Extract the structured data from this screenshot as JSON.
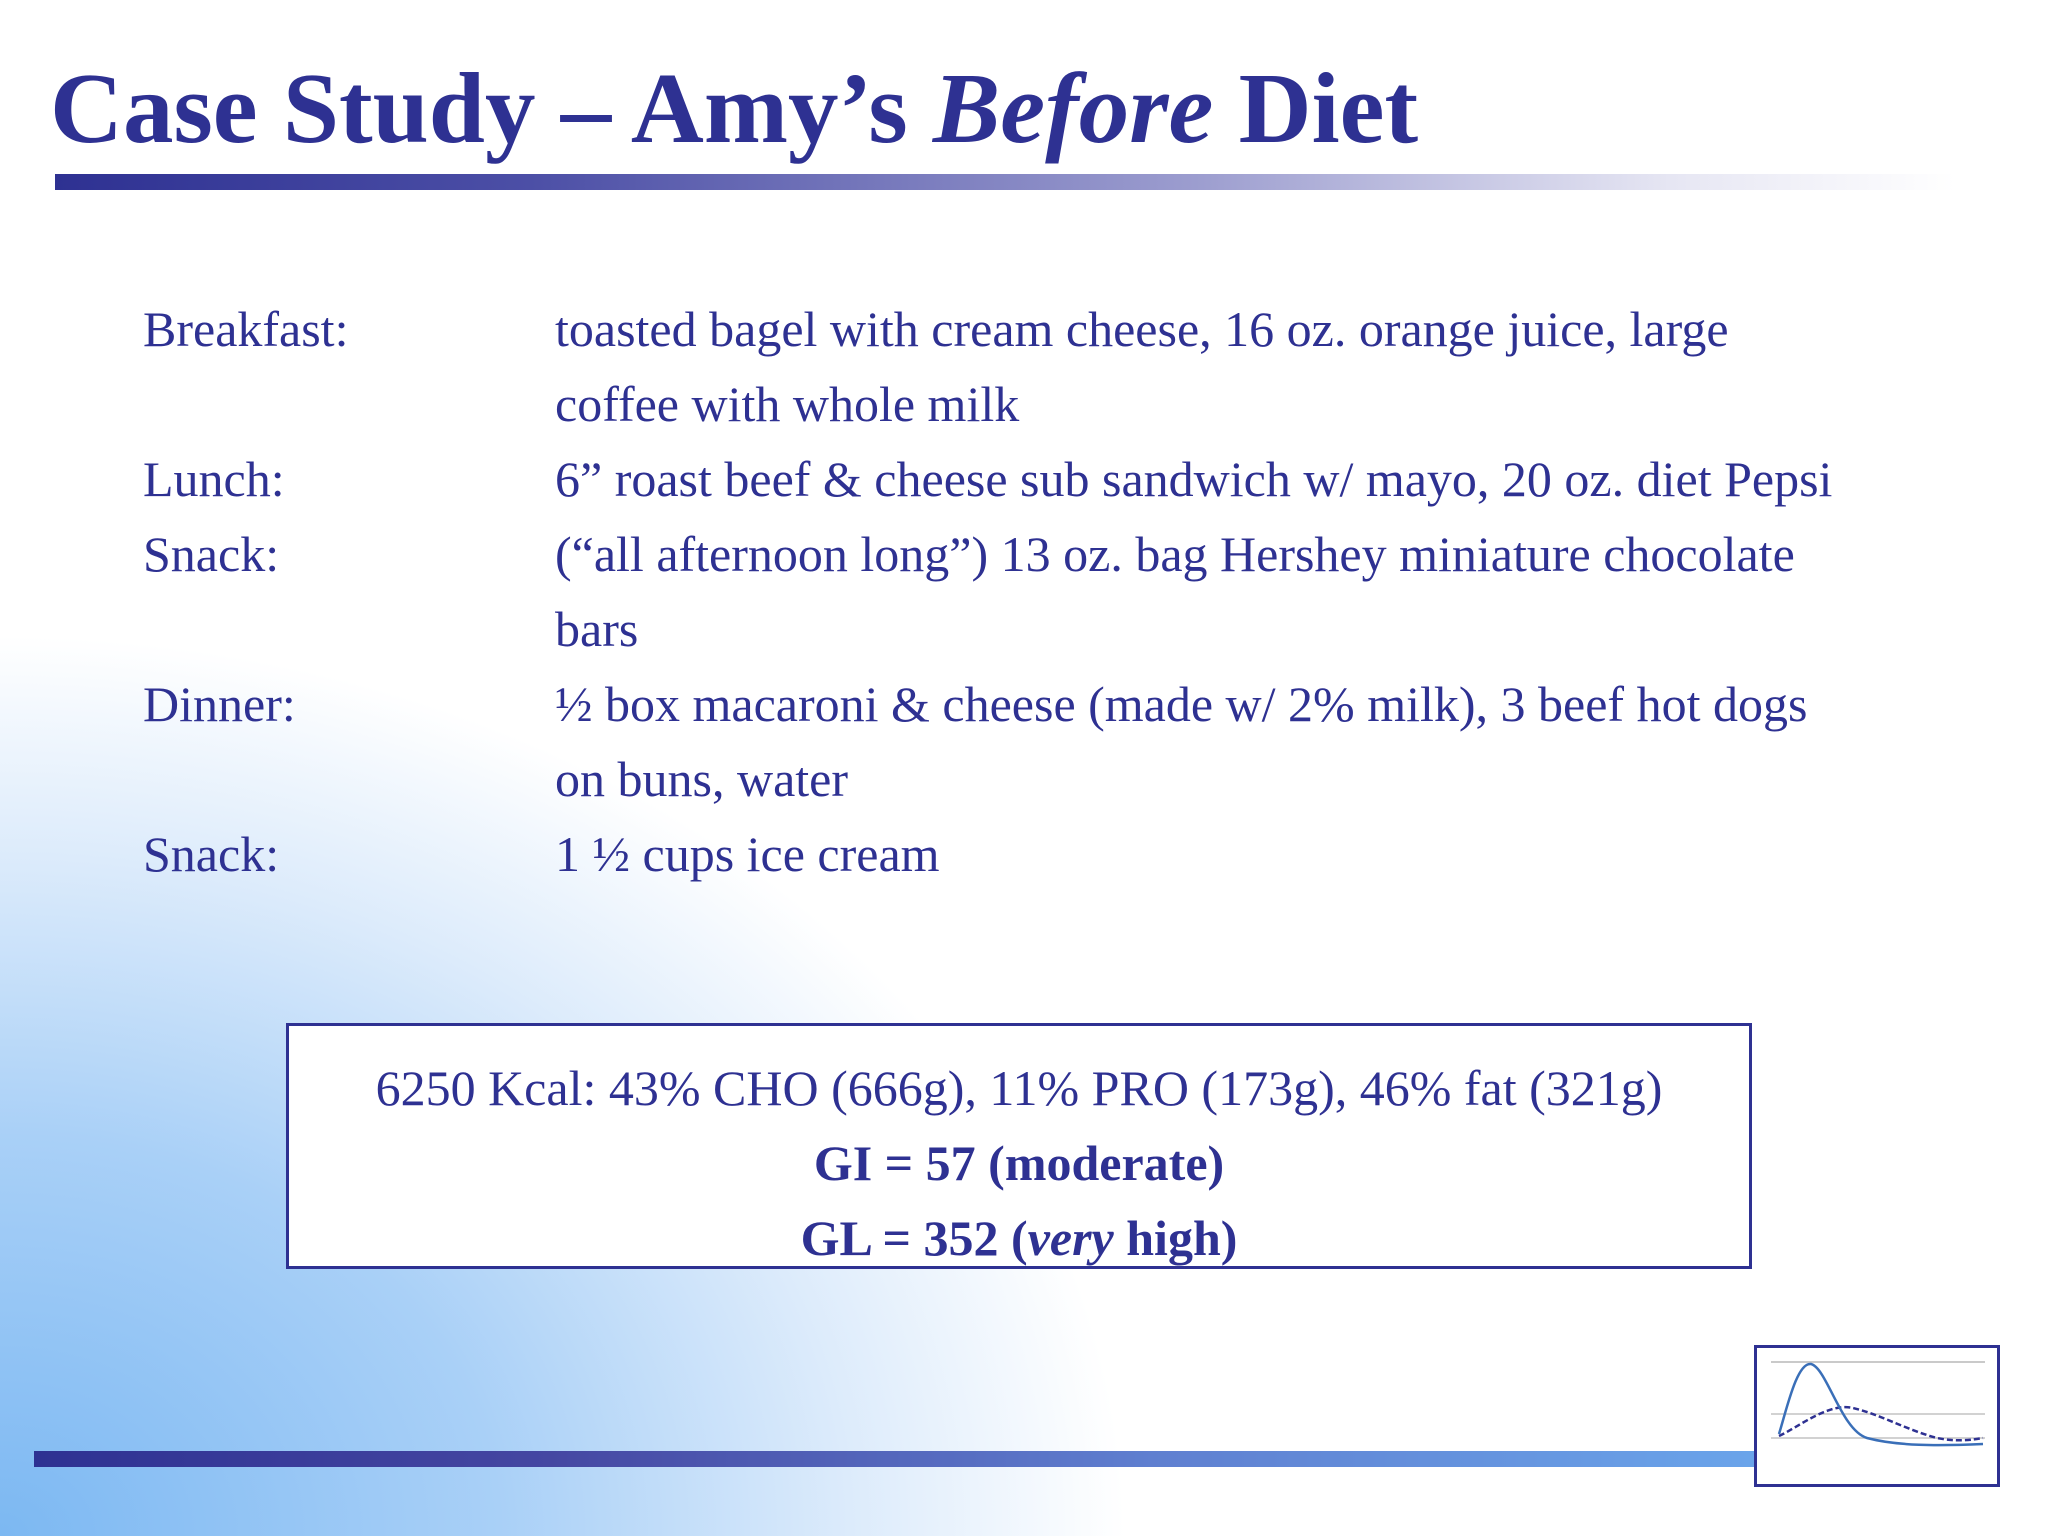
{
  "title": {
    "prefix": "Case Study – Amy’s ",
    "emphasis": "Before",
    "suffix": " Diet"
  },
  "meals": [
    {
      "label": "Breakfast:",
      "description": "toasted bagel with cream cheese, 16 oz. orange juice, large coffee with whole milk"
    },
    {
      "label": "Lunch:",
      "description": "6” roast beef & cheese sub sandwich w/ mayo, 20 oz. diet Pepsi"
    },
    {
      "label": "Snack:",
      "description": "(“all afternoon long”) 13 oz. bag Hershey miniature chocolate bars"
    },
    {
      "label": "Dinner:",
      "description": "½ box macaroni & cheese (made w/ 2% milk), 3 beef hot dogs on buns, water"
    },
    {
      "label": "Snack:",
      "description": "1 ½ cups ice cream"
    }
  ],
  "summary": {
    "nutrition": "6250 Kcal: 43% CHO (666g), 11% PRO (173g), 46% fat (321g)",
    "gi": "GI = 57 (moderate)",
    "gl_prefix": "GL = 352 (",
    "gl_emphasis": "very",
    "gl_suffix": " high)"
  },
  "logo": {
    "icon": "glycemic-curve-icon"
  },
  "colors": {
    "primary": "#2e3192",
    "background_accent": "#7cb8f2"
  }
}
